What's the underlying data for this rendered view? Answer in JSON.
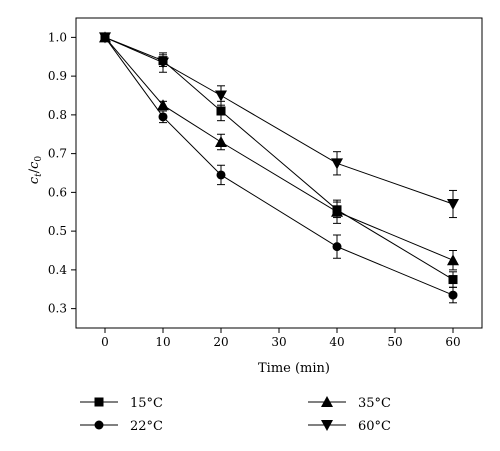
{
  "chart_data": {
    "type": "line",
    "xlabel": "Time (min)",
    "ylabel": "c_t/c_0",
    "ylabel_main": "c",
    "ylabel_sub_t": "t",
    "ylabel_slash": "/",
    "ylabel_sub_0": "0",
    "xlim": [
      -5,
      65
    ],
    "ylim": [
      0.25,
      1.05
    ],
    "xticks": [
      0,
      10,
      20,
      30,
      40,
      50,
      60
    ],
    "yticks": [
      0.3,
      0.4,
      0.5,
      0.6,
      0.7,
      0.8,
      0.9,
      1.0
    ],
    "xtick_labels": [
      "0",
      "10",
      "20",
      "30",
      "40",
      "50",
      "60"
    ],
    "ytick_labels": [
      "0.3",
      "0.4",
      "0.5",
      "0.6",
      "0.7",
      "0.8",
      "0.9",
      "1.0"
    ],
    "grid": false,
    "legend_placement": "bottom",
    "x": [
      0,
      10,
      20,
      40,
      60
    ],
    "series": [
      {
        "name": "15°C",
        "marker": "square",
        "values": [
          1.0,
          0.94,
          0.81,
          0.555,
          0.375
        ],
        "errors": [
          0,
          0.015,
          0.025,
          0.02,
          0.02
        ]
      },
      {
        "name": "22°C",
        "marker": "circle",
        "values": [
          1.0,
          0.795,
          0.645,
          0.46,
          0.335
        ],
        "errors": [
          0,
          0.015,
          0.025,
          0.03,
          0.02
        ]
      },
      {
        "name": "35°C",
        "marker": "triangle-up",
        "values": [
          1.0,
          0.825,
          0.73,
          0.55,
          0.425
        ],
        "errors": [
          0,
          0.01,
          0.02,
          0.03,
          0.025
        ]
      },
      {
        "name": "60°C",
        "marker": "triangle-down",
        "values": [
          1.0,
          0.935,
          0.85,
          0.675,
          0.57
        ],
        "errors": [
          0,
          0.025,
          0.025,
          0.03,
          0.035
        ]
      }
    ],
    "colors": {
      "line": "#000000",
      "marker": "#000000"
    }
  }
}
